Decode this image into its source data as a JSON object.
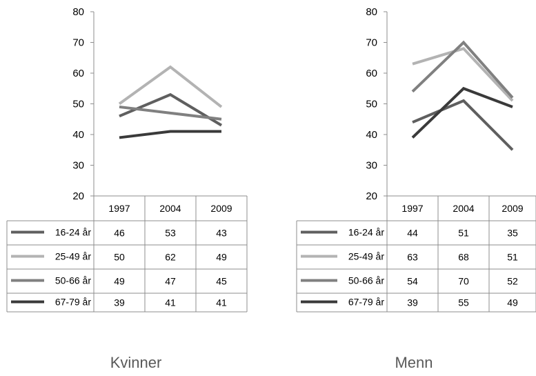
{
  "colors": {
    "16-24 år": "#5f5f5f",
    "25-49 år": "#b3b3b3",
    "50-66 år": "#808080",
    "67-79 år": "#3a3a3a"
  },
  "chart_data": [
    {
      "type": "line",
      "title": "",
      "caption": "Kvinner",
      "categories": [
        "1997",
        "2004",
        "2009"
      ],
      "ylim": [
        20,
        80
      ],
      "yticks": [
        20,
        30,
        40,
        50,
        60,
        70,
        80
      ],
      "legend": "data-table",
      "series": [
        {
          "name": "16-24 år",
          "values": [
            46,
            53,
            43
          ]
        },
        {
          "name": "25-49 år",
          "values": [
            50,
            62,
            49
          ]
        },
        {
          "name": "50-66 år",
          "values": [
            49,
            47,
            45
          ]
        },
        {
          "name": "67-79 år",
          "values": [
            39,
            41,
            41
          ]
        }
      ]
    },
    {
      "type": "line",
      "title": "",
      "caption": "Menn",
      "categories": [
        "1997",
        "2004",
        "2009"
      ],
      "ylim": [
        20,
        80
      ],
      "yticks": [
        20,
        30,
        40,
        50,
        60,
        70,
        80
      ],
      "legend": "data-table",
      "series": [
        {
          "name": "16-24 år",
          "values": [
            44,
            51,
            35
          ]
        },
        {
          "name": "25-49 år",
          "values": [
            63,
            68,
            51
          ]
        },
        {
          "name": "50-66 år",
          "values": [
            54,
            70,
            52
          ]
        },
        {
          "name": "67-79 år",
          "values": [
            39,
            55,
            49
          ]
        }
      ]
    }
  ]
}
